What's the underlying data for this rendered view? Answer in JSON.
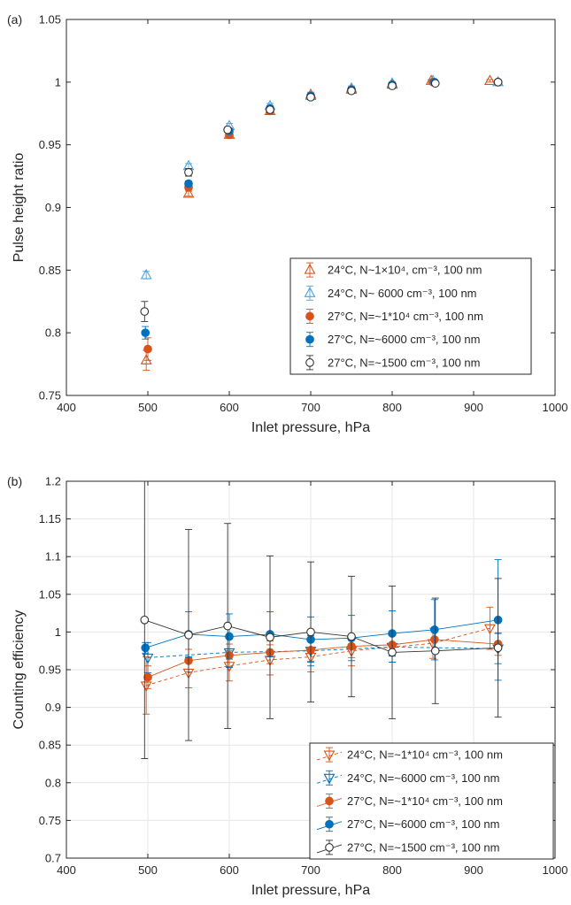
{
  "colors": {
    "orange": "#D95319",
    "blue": "#0072BD",
    "lightblue": "#4DA3DD",
    "black": "#333333"
  },
  "chart_data": [
    {
      "type": "scatter",
      "panel_label": "(a)",
      "xlabel": "Inlet pressure, hPa",
      "ylabel": "Pulse height ratio",
      "xlim": [
        400,
        1000
      ],
      "ylim": [
        0.75,
        1.05
      ],
      "xticks": [
        "400",
        "500",
        "600",
        "700",
        "800",
        "900",
        "1000"
      ],
      "yticks": [
        "0.75",
        "0.8",
        "0.85",
        "0.9",
        "0.95",
        "1",
        "1.05"
      ],
      "grid": false,
      "legend_position": "lower-right",
      "series": [
        {
          "name": "24°C, N~1×10⁴, cm⁻³, 100 nm",
          "color": "#D95319",
          "marker": "triangle-up",
          "fill": false,
          "line": false,
          "points": [
            [
              498,
              0.778,
              0.008
            ],
            [
              550,
              0.911,
              0.002
            ],
            [
              600,
              0.958,
              0.002
            ],
            [
              650,
              0.977,
              0.002
            ],
            [
              700,
              0.99,
              0.002
            ],
            [
              750,
              0.994,
              0.002
            ],
            [
              800,
              0.998,
              0.002
            ],
            [
              848,
              1.001,
              0.001
            ],
            [
              920,
              1.001,
              0.001
            ]
          ]
        },
        {
          "name": "24°C, N~ 6000 cm⁻³, 100 nm",
          "color": "#4DA3DD",
          "marker": "triangle-up",
          "fill": false,
          "line": false,
          "points": [
            [
              498,
              0.846,
              0.003
            ],
            [
              550,
              0.933,
              0.002
            ],
            [
              600,
              0.965,
              0.002
            ],
            [
              650,
              0.981,
              0.002
            ],
            [
              700,
              0.989,
              0.002
            ],
            [
              750,
              0.995,
              0.002
            ],
            [
              800,
              0.999,
              0.001
            ],
            [
              850,
              1.001,
              0.001
            ],
            [
              930,
              1.0,
              0.001
            ]
          ]
        },
        {
          "name": "27°C, N=~1*10⁴ cm⁻³, 100 nm",
          "color": "#D95319",
          "marker": "circle",
          "fill": true,
          "line": false,
          "points": [
            [
              500,
              0.787,
              0.009
            ],
            [
              550,
              0.916,
              0.002
            ],
            [
              600,
              0.958,
              0.002
            ],
            [
              650,
              0.977,
              0.002
            ],
            [
              700,
              0.989,
              0.002
            ],
            [
              750,
              0.994,
              0.002
            ],
            [
              800,
              0.998,
              0.001
            ],
            [
              850,
              1.0,
              0.001
            ],
            [
              930,
              1.0,
              0.001
            ]
          ]
        },
        {
          "name": "27°C, N=~6000 cm⁻³, 100 nm",
          "color": "#0072BD",
          "marker": "circle",
          "fill": true,
          "line": false,
          "points": [
            [
              497,
              0.8,
              0.005
            ],
            [
              550,
              0.919,
              0.002
            ],
            [
              600,
              0.961,
              0.002
            ],
            [
              650,
              0.979,
              0.002
            ],
            [
              700,
              0.989,
              0.002
            ],
            [
              750,
              0.994,
              0.002
            ],
            [
              800,
              0.998,
              0.001
            ],
            [
              852,
              1.0,
              0.001
            ],
            [
              930,
              1.0,
              0.001
            ]
          ]
        },
        {
          "name": "27°C, N=~1500 cm⁻³, 100 nm",
          "color": "#333333",
          "marker": "circle",
          "fill": false,
          "line": false,
          "points": [
            [
              496,
              0.817,
              0.008
            ],
            [
              550,
              0.928,
              0.003
            ],
            [
              598,
              0.962,
              0.002
            ],
            [
              650,
              0.978,
              0.002
            ],
            [
              700,
              0.988,
              0.002
            ],
            [
              750,
              0.993,
              0.002
            ],
            [
              800,
              0.997,
              0.001
            ],
            [
              853,
              0.999,
              0.001
            ],
            [
              930,
              1.0,
              0.001
            ]
          ]
        }
      ]
    },
    {
      "type": "line",
      "panel_label": "(b)",
      "xlabel": "Inlet pressure, hPa",
      "ylabel": "Counting efficiency",
      "xlim": [
        400,
        1000
      ],
      "ylim": [
        0.7,
        1.2
      ],
      "xticks": [
        "400",
        "500",
        "600",
        "700",
        "800",
        "900",
        "1000"
      ],
      "yticks": [
        "0.7",
        "0.75",
        "0.8",
        "0.85",
        "0.9",
        "0.95",
        "1",
        "1.05",
        "1.1",
        "1.15",
        "1.2"
      ],
      "grid": true,
      "legend_position": "lower-right",
      "series": [
        {
          "name": "24°C, N=~1*10⁴ cm⁻³, 100 nm",
          "color": "#D95319",
          "marker": "triangle-down",
          "fill": false,
          "line": "dashed",
          "points": [
            [
              498,
              0.929,
              0.038
            ],
            [
              550,
              0.946,
              0.02
            ],
            [
              600,
              0.955,
              0.02
            ],
            [
              650,
              0.963,
              0.02
            ],
            [
              700,
              0.967,
              0.02
            ],
            [
              750,
              0.975,
              0.02
            ],
            [
              800,
              0.98,
              0.02
            ],
            [
              850,
              0.985,
              0.02
            ],
            [
              920,
              1.005,
              0.028
            ]
          ]
        },
        {
          "name": "24°C, N=~6000 cm⁻³, 100 nm",
          "color": "#0072BD",
          "marker": "triangle-down",
          "fill": false,
          "line": "dashed",
          "points": [
            [
              500,
              0.966,
              0.02
            ],
            [
              600,
              0.973,
              0.02
            ],
            [
              700,
              0.975,
              0.02
            ],
            [
              800,
              0.98,
              0.02
            ],
            [
              930,
              0.978,
              0.02
            ]
          ]
        },
        {
          "name": "27°C, N=~1*10⁴ cm⁻³, 100 nm",
          "color": "#D95319",
          "marker": "circle",
          "fill": true,
          "line": "solid",
          "points": [
            [
              500,
              0.94,
              0.015
            ],
            [
              550,
              0.962,
              0.015
            ],
            [
              600,
              0.969,
              0.015
            ],
            [
              650,
              0.973,
              0.015
            ],
            [
              700,
              0.976,
              0.015
            ],
            [
              750,
              0.981,
              0.015
            ],
            [
              800,
              0.983,
              0.015
            ],
            [
              852,
              0.99,
              0.015
            ],
            [
              930,
              0.984,
              0.015
            ]
          ]
        },
        {
          "name": "27°C, N=~6000 cm⁻³, 100 nm",
          "color": "#0072BD",
          "marker": "circle",
          "fill": true,
          "line": "solid",
          "points": [
            [
              497,
              0.979,
              0.007
            ],
            [
              550,
              0.997,
              0.03
            ],
            [
              600,
              0.994,
              0.03
            ],
            [
              650,
              0.997,
              0.03
            ],
            [
              700,
              0.99,
              0.03
            ],
            [
              750,
              0.992,
              0.03
            ],
            [
              800,
              0.998,
              0.03
            ],
            [
              852,
              1.003,
              0.04
            ],
            [
              930,
              1.016,
              0.08
            ]
          ]
        },
        {
          "name": "27°C, N=~1500 cm⁻³, 100 nm",
          "color": "#333333",
          "marker": "circle",
          "fill": false,
          "line": "solid",
          "points": [
            [
              496,
              1.016,
              0.184
            ],
            [
              550,
              0.996,
              0.14
            ],
            [
              598,
              1.008,
              0.136
            ],
            [
              650,
              0.993,
              0.108
            ],
            [
              700,
              1.0,
              0.093
            ],
            [
              750,
              0.994,
              0.08
            ],
            [
              800,
              0.973,
              0.088
            ],
            [
              853,
              0.975,
              0.07
            ],
            [
              930,
              0.979,
              0.092
            ]
          ]
        }
      ]
    }
  ]
}
